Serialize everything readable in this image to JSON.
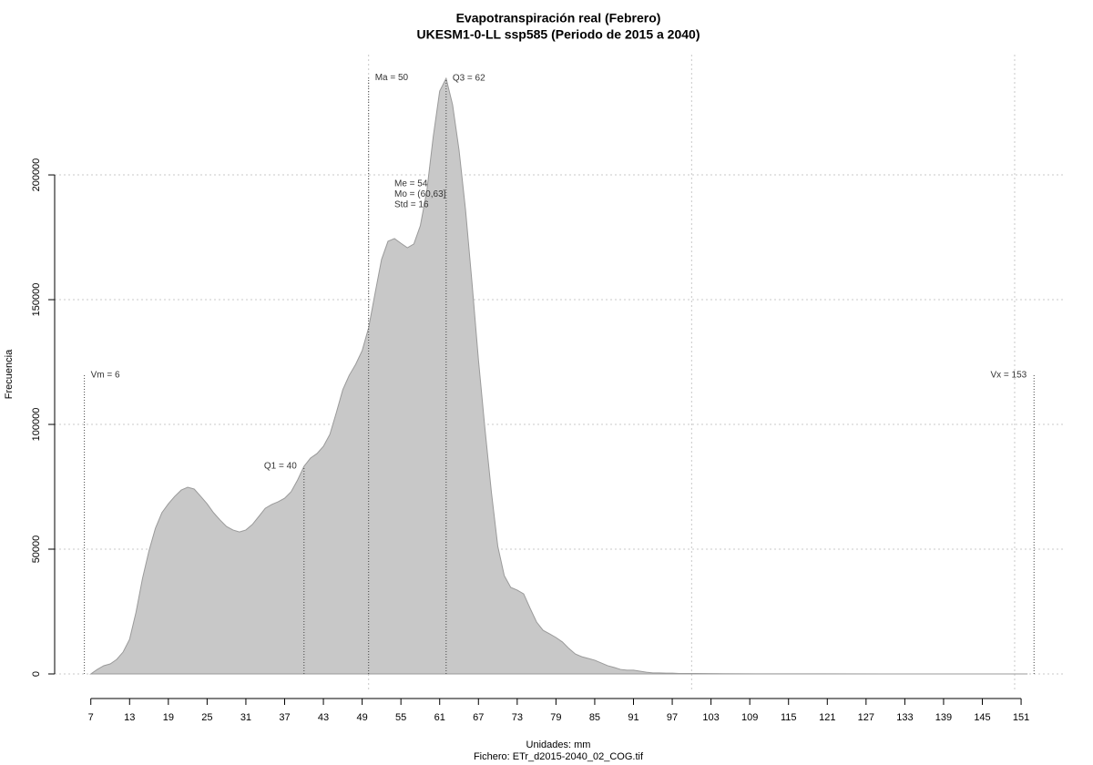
{
  "chart_data": {
    "type": "area",
    "title": "Evapotranspiración real (Febrero)",
    "subtitle": "UKESM1-0-LL ssp585 (Periodo de 2015 a 2040)",
    "x_label": "Unidades: mm",
    "caption": "Fichero: ETr_d2015-2040_02_COG.tif",
    "y_label": "Frecuencia",
    "x": [
      7,
      8,
      9,
      10,
      11,
      12,
      13,
      14,
      15,
      16,
      17,
      18,
      19,
      20,
      21,
      22,
      23,
      24,
      25,
      26,
      27,
      28,
      29,
      30,
      31,
      32,
      33,
      34,
      35,
      36,
      37,
      38,
      39,
      40,
      41,
      42,
      43,
      44,
      45,
      46,
      47,
      48,
      49,
      50,
      51,
      52,
      53,
      54,
      55,
      56,
      57,
      58,
      59,
      60,
      61,
      62,
      63,
      64,
      65,
      66,
      67,
      68,
      69,
      70,
      71,
      72,
      73,
      74,
      75,
      76,
      77,
      78,
      79,
      80,
      81,
      82,
      83,
      84,
      85,
      86,
      87,
      88,
      89,
      90,
      91,
      92,
      93,
      94,
      95,
      96,
      97,
      98,
      99,
      100,
      105,
      110,
      120,
      130,
      140,
      152
    ],
    "values": [
      0,
      1800,
      3300,
      4000,
      5800,
      8800,
      13900,
      24800,
      38300,
      49300,
      58400,
      64600,
      68200,
      71200,
      73700,
      74800,
      74100,
      71200,
      68200,
      64600,
      61700,
      59100,
      57700,
      56900,
      57700,
      59900,
      63100,
      66400,
      67900,
      69000,
      70400,
      73000,
      77700,
      83200,
      86500,
      88300,
      91200,
      96000,
      104700,
      113900,
      119700,
      124100,
      129600,
      138700,
      152600,
      166100,
      173400,
      174500,
      172600,
      170800,
      172300,
      179600,
      193400,
      215300,
      233600,
      238700,
      228100,
      209900,
      186100,
      156900,
      125900,
      98500,
      73000,
      51100,
      39400,
      34700,
      33600,
      32100,
      26300,
      20800,
      17500,
      16100,
      14600,
      12800,
      10200,
      8000,
      6900,
      6200,
      5500,
      4400,
      3300,
      2600,
      1800,
      1500,
      1500,
      1100,
      700,
      400,
      400,
      300,
      300,
      200,
      200,
      200,
      100,
      50,
      30,
      20,
      10,
      0
    ],
    "color": "#c8c8c8",
    "line_color": "#9a9a9a",
    "xlim": [
      1.4,
      157.9
    ],
    "ylim": [
      -7300,
      248200
    ],
    "xticks": [
      7,
      13,
      19,
      25,
      31,
      37,
      43,
      49,
      55,
      61,
      67,
      73,
      79,
      85,
      91,
      97,
      103,
      109,
      115,
      121,
      127,
      133,
      139,
      145,
      151
    ],
    "yticks": [
      0,
      50000,
      100000,
      150000,
      200000
    ],
    "xgrid": [
      50,
      100,
      150
    ],
    "grid": true,
    "markers": [
      {
        "label": "Vm = 6",
        "value": 6,
        "top": 119700
      },
      {
        "label": "Q1 = 40",
        "value": 40,
        "top": 83200
      },
      {
        "label": "Ma = 50",
        "value": 50,
        "top": 239000
      },
      {
        "label": "Q3 = 62",
        "value": 62,
        "top": 238700
      },
      {
        "label": "Vx = 153",
        "value": 153,
        "top": 119700
      }
    ],
    "stats": [
      "Me = 54",
      "Mo = (60,63]",
      "Std = 16"
    ]
  }
}
